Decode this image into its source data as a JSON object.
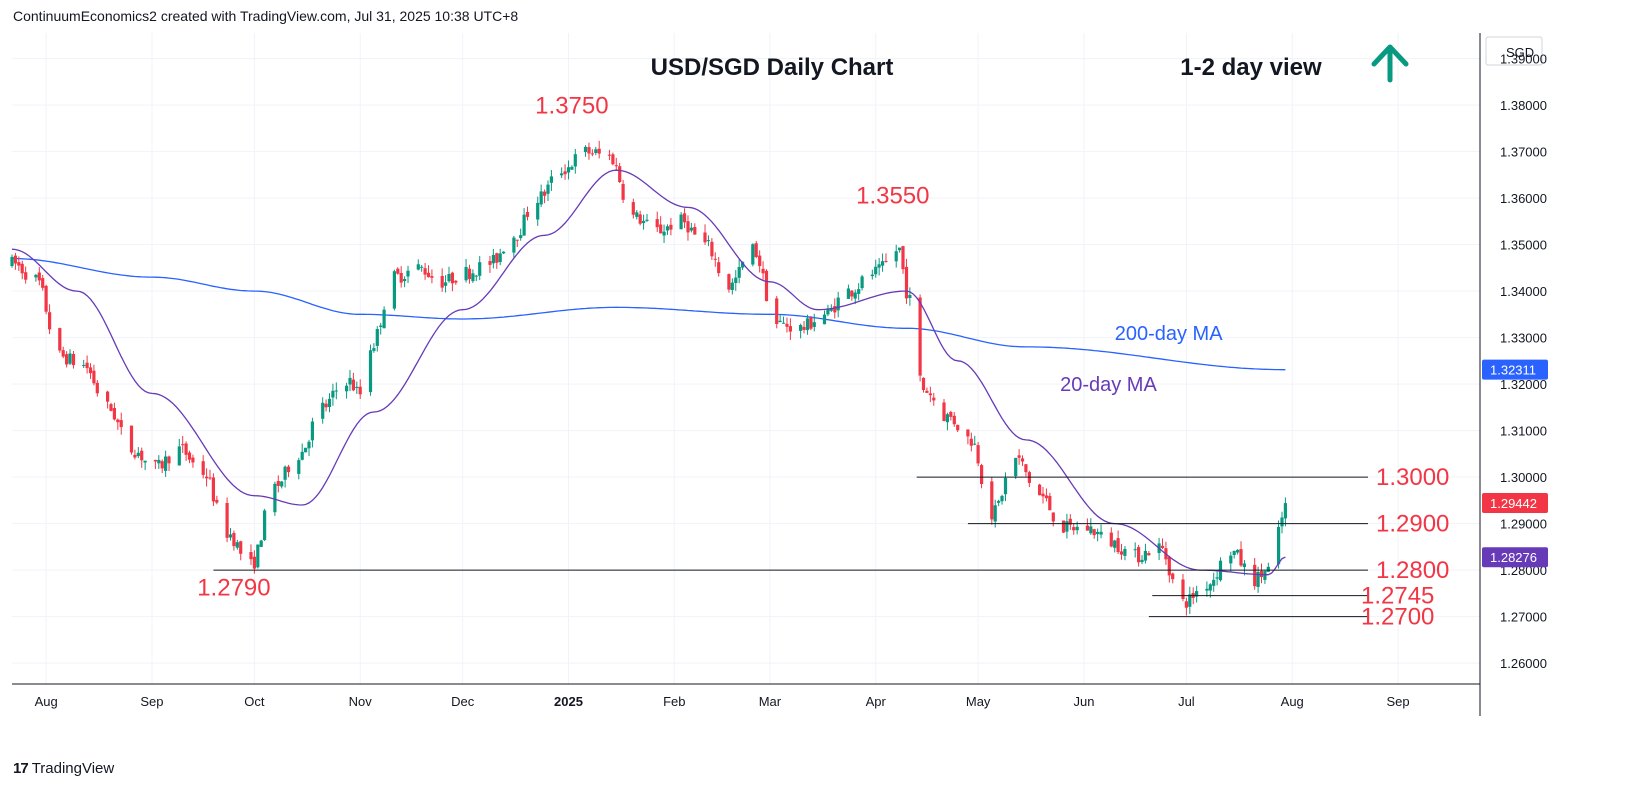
{
  "header": {
    "attribution": "ContinuumEconomics2 created with TradingView.com, Jul 31, 2025 10:38 UTC+8"
  },
  "footer": {
    "brand_logo": "17",
    "brand_name": "TradingView"
  },
  "colors": {
    "up": "#089981",
    "down": "#f23645",
    "ma20": "#673ab7",
    "ma200": "#2962ff",
    "level_label": "#f23645",
    "arrow": "#089981",
    "grid": "#f0f3fa"
  },
  "icons": {
    "view_arrow": "up-arrow-icon",
    "brand": "tradingview-logo-icon"
  },
  "chart_data": {
    "type": "candlestick",
    "title": "USD/SGD Daily Chart",
    "view_label": "1-2 day view",
    "view_direction": "up",
    "currency_label": "SGD",
    "ylim": [
      1.2555,
      1.3955
    ],
    "y_ticks": [
      "1.39000",
      "1.38000",
      "1.37000",
      "1.36000",
      "1.35000",
      "1.34000",
      "1.33000",
      "1.32000",
      "1.31000",
      "1.30000",
      "1.29000",
      "1.28000",
      "1.27000",
      "1.26000"
    ],
    "x_ticks": [
      "Aug",
      "Sep",
      "Oct",
      "Nov",
      "Dec",
      "2025",
      "Feb",
      "Mar",
      "Apr",
      "May",
      "Jun",
      "Jul",
      "Aug",
      "Sep"
    ],
    "x_tick_dates": [
      "2024-08-01",
      "2024-09-01",
      "2024-10-01",
      "2024-11-01",
      "2024-12-01",
      "2025-01-01",
      "2025-02-01",
      "2025-03-01",
      "2025-04-01",
      "2025-05-01",
      "2025-06-01",
      "2025-07-01",
      "2025-08-01",
      "2025-09-01"
    ],
    "x_range": [
      "2024-07-22",
      "2025-09-25"
    ],
    "price_anchors": [
      {
        "date": "2024-07-22",
        "price": 1.346
      },
      {
        "date": "2024-07-29",
        "price": 1.3425
      },
      {
        "date": "2024-08-05",
        "price": 1.326
      },
      {
        "date": "2024-08-12",
        "price": 1.324
      },
      {
        "date": "2024-08-19",
        "price": 1.315
      },
      {
        "date": "2024-08-26",
        "price": 1.306
      },
      {
        "date": "2024-09-02",
        "price": 1.302
      },
      {
        "date": "2024-09-09",
        "price": 1.306
      },
      {
        "date": "2024-09-16",
        "price": 1.301
      },
      {
        "date": "2024-09-23",
        "price": 1.288
      },
      {
        "date": "2024-09-30",
        "price": 1.281
      },
      {
        "date": "2024-10-07",
        "price": 1.298
      },
      {
        "date": "2024-10-14",
        "price": 1.305
      },
      {
        "date": "2024-10-21",
        "price": 1.315
      },
      {
        "date": "2024-10-28",
        "price": 1.321
      },
      {
        "date": "2024-11-01",
        "price": 1.318
      },
      {
        "date": "2024-11-04",
        "price": 1.328
      },
      {
        "date": "2024-11-11",
        "price": 1.343
      },
      {
        "date": "2024-11-18",
        "price": 1.345
      },
      {
        "date": "2024-11-25",
        "price": 1.342
      },
      {
        "date": "2024-12-02",
        "price": 1.344
      },
      {
        "date": "2024-12-09",
        "price": 1.346
      },
      {
        "date": "2024-12-16",
        "price": 1.352
      },
      {
        "date": "2024-12-23",
        "price": 1.36
      },
      {
        "date": "2024-12-30",
        "price": 1.366
      },
      {
        "date": "2025-01-06",
        "price": 1.37
      },
      {
        "date": "2025-01-13",
        "price": 1.369
      },
      {
        "date": "2025-01-20",
        "price": 1.356
      },
      {
        "date": "2025-01-27",
        "price": 1.353
      },
      {
        "date": "2025-02-03",
        "price": 1.355
      },
      {
        "date": "2025-02-10",
        "price": 1.35
      },
      {
        "date": "2025-02-17",
        "price": 1.341
      },
      {
        "date": "2025-02-24",
        "price": 1.349
      },
      {
        "date": "2025-03-03",
        "price": 1.333
      },
      {
        "date": "2025-03-10",
        "price": 1.332
      },
      {
        "date": "2025-03-17",
        "price": 1.335
      },
      {
        "date": "2025-03-24",
        "price": 1.34
      },
      {
        "date": "2025-04-01",
        "price": 1.344
      },
      {
        "date": "2025-04-08",
        "price": 1.349
      },
      {
        "date": "2025-04-10",
        "price": 1.34
      },
      {
        "date": "2025-04-15",
        "price": 1.319
      },
      {
        "date": "2025-04-22",
        "price": 1.313
      },
      {
        "date": "2025-04-29",
        "price": 1.308
      },
      {
        "date": "2025-05-05",
        "price": 1.292
      },
      {
        "date": "2025-05-12",
        "price": 1.304
      },
      {
        "date": "2025-05-19",
        "price": 1.296
      },
      {
        "date": "2025-05-26",
        "price": 1.289
      },
      {
        "date": "2025-06-02",
        "price": 1.289
      },
      {
        "date": "2025-06-09",
        "price": 1.286
      },
      {
        "date": "2025-06-16",
        "price": 1.283
      },
      {
        "date": "2025-06-23",
        "price": 1.285
      },
      {
        "date": "2025-06-30",
        "price": 1.273
      },
      {
        "date": "2025-07-07",
        "price": 1.277
      },
      {
        "date": "2025-07-14",
        "price": 1.284
      },
      {
        "date": "2025-07-21",
        "price": 1.278
      },
      {
        "date": "2025-07-25",
        "price": 1.28
      },
      {
        "date": "2025-07-28",
        "price": 1.288
      },
      {
        "date": "2025-07-30",
        "price": 1.2944
      }
    ],
    "ma200_anchors": [
      {
        "date": "2024-07-22",
        "price": 1.347
      },
      {
        "date": "2024-09-01",
        "price": 1.343
      },
      {
        "date": "2024-10-01",
        "price": 1.34
      },
      {
        "date": "2024-11-01",
        "price": 1.335
      },
      {
        "date": "2024-12-01",
        "price": 1.334
      },
      {
        "date": "2025-01-15",
        "price": 1.3365
      },
      {
        "date": "2025-03-01",
        "price": 1.335
      },
      {
        "date": "2025-04-10",
        "price": 1.332
      },
      {
        "date": "2025-05-15",
        "price": 1.328
      },
      {
        "date": "2025-07-30",
        "price": 1.3231
      }
    ],
    "ma20_anchors": [
      {
        "date": "2024-07-22",
        "price": 1.349
      },
      {
        "date": "2024-08-10",
        "price": 1.34
      },
      {
        "date": "2024-09-01",
        "price": 1.318
      },
      {
        "date": "2024-10-01",
        "price": 1.296
      },
      {
        "date": "2024-10-15",
        "price": 1.294
      },
      {
        "date": "2024-11-05",
        "price": 1.314
      },
      {
        "date": "2024-12-01",
        "price": 1.336
      },
      {
        "date": "2024-12-25",
        "price": 1.352
      },
      {
        "date": "2025-01-15",
        "price": 1.366
      },
      {
        "date": "2025-02-05",
        "price": 1.358
      },
      {
        "date": "2025-03-01",
        "price": 1.342
      },
      {
        "date": "2025-03-15",
        "price": 1.336
      },
      {
        "date": "2025-04-10",
        "price": 1.34
      },
      {
        "date": "2025-04-25",
        "price": 1.325
      },
      {
        "date": "2025-05-15",
        "price": 1.308
      },
      {
        "date": "2025-06-10",
        "price": 1.29
      },
      {
        "date": "2025-07-05",
        "price": 1.28
      },
      {
        "date": "2025-07-25",
        "price": 1.279
      },
      {
        "date": "2025-07-30",
        "price": 1.2828
      }
    ],
    "levels": [
      {
        "price": 1.3,
        "label": "1.3000",
        "from": "2025-04-13"
      },
      {
        "price": 1.29,
        "label": "1.2900",
        "from": "2025-04-28"
      },
      {
        "price": 1.28,
        "label": "1.2800",
        "from": "2024-09-19"
      },
      {
        "price": 1.2745,
        "label": "1.2745",
        "from": "2025-06-21"
      },
      {
        "price": 1.27,
        "label": "1.2700",
        "from": "2025-06-20"
      }
    ],
    "annotations": [
      {
        "label": "1.3750",
        "date": "2025-01-02",
        "price": 1.3782
      },
      {
        "label": "1.3550",
        "date": "2025-04-06",
        "price": 1.3588
      },
      {
        "label": "1.2790",
        "date": "2024-09-25",
        "price": 1.2745
      }
    ],
    "ma_labels": [
      {
        "label": "200-day MA",
        "date": "2025-06-10",
        "price": 1.3295
      },
      {
        "label": "20-day MA",
        "date": "2025-05-25",
        "price": 1.3185
      }
    ],
    "price_badges": [
      {
        "label": "1.32311",
        "price": 1.32311,
        "color": "#2962ff"
      },
      {
        "label": "1.29442",
        "price": 1.29442,
        "color": "#f23645"
      },
      {
        "label": "1.28276",
        "price": 1.28276,
        "color": "#673ab7"
      }
    ],
    "grid": true
  }
}
